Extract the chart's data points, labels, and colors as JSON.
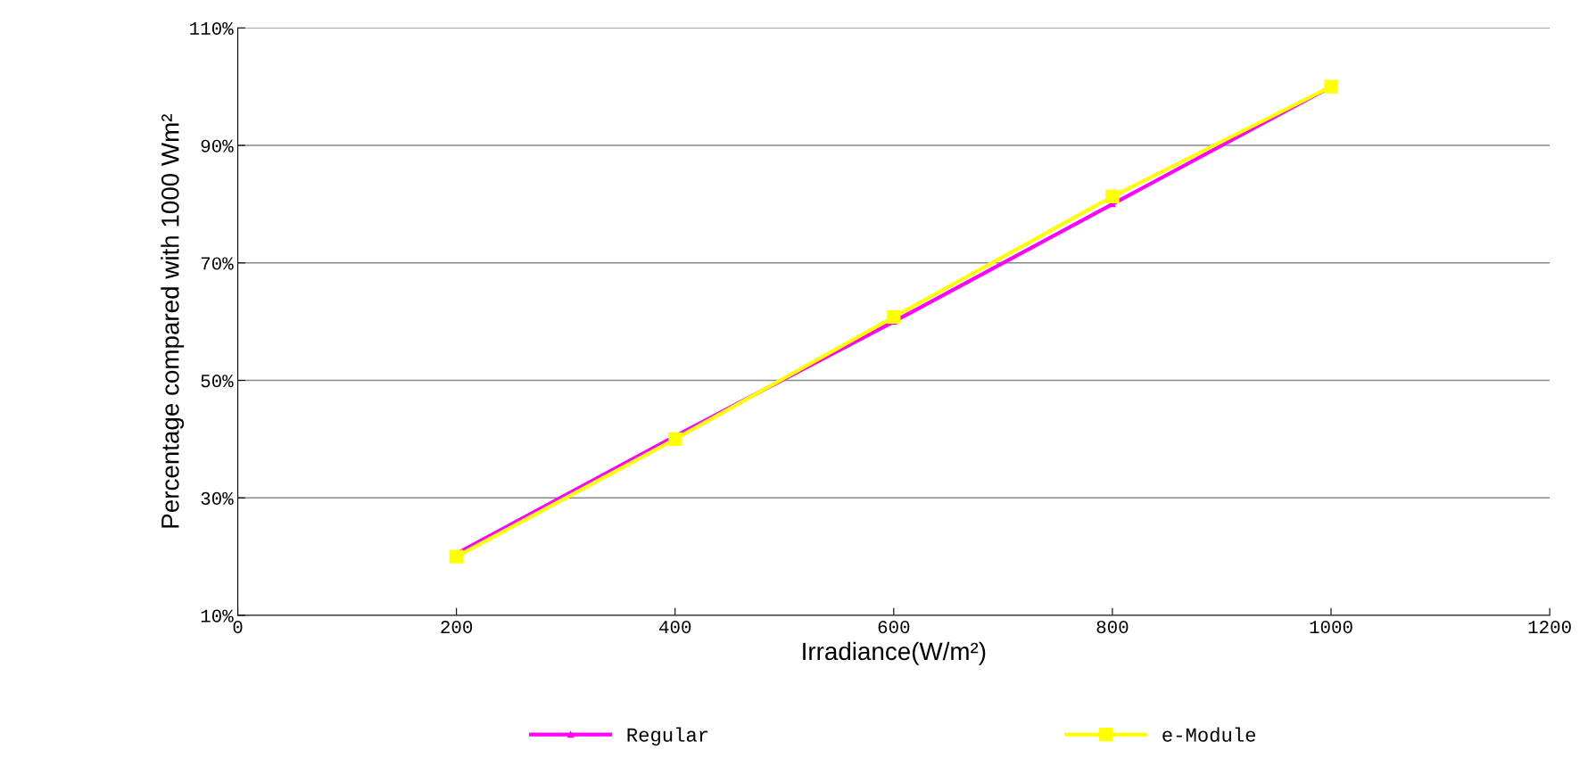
{
  "chart_data": {
    "type": "line",
    "xlabel": "Irradiance(W/m²)",
    "ylabel": "Percentage compared with 1000 Wm²",
    "x": [
      200,
      400,
      600,
      800,
      1000
    ],
    "series": [
      {
        "name": "Regular",
        "color": "#ff00ff",
        "values": [
          20.5,
          40.5,
          60,
          80,
          100
        ],
        "marker": "triangle"
      },
      {
        "name": "e-Module",
        "color": "#ffff00",
        "values": [
          20,
          40,
          60.8,
          81.3,
          100
        ],
        "marker": "square"
      }
    ],
    "xlim": [
      0,
      1200
    ],
    "xticks": [
      0,
      200,
      400,
      600,
      800,
      1000,
      1200
    ],
    "ylim": [
      10,
      110
    ],
    "yticks": [
      {
        "value": 10,
        "label": "10%"
      },
      {
        "value": 30,
        "label": "30%"
      },
      {
        "value": 50,
        "label": "50%"
      },
      {
        "value": 70,
        "label": "70%"
      },
      {
        "value": 90,
        "label": "90%"
      },
      {
        "value": 110,
        "label": "110%"
      }
    ],
    "grid": "y",
    "legend": "bottom"
  }
}
